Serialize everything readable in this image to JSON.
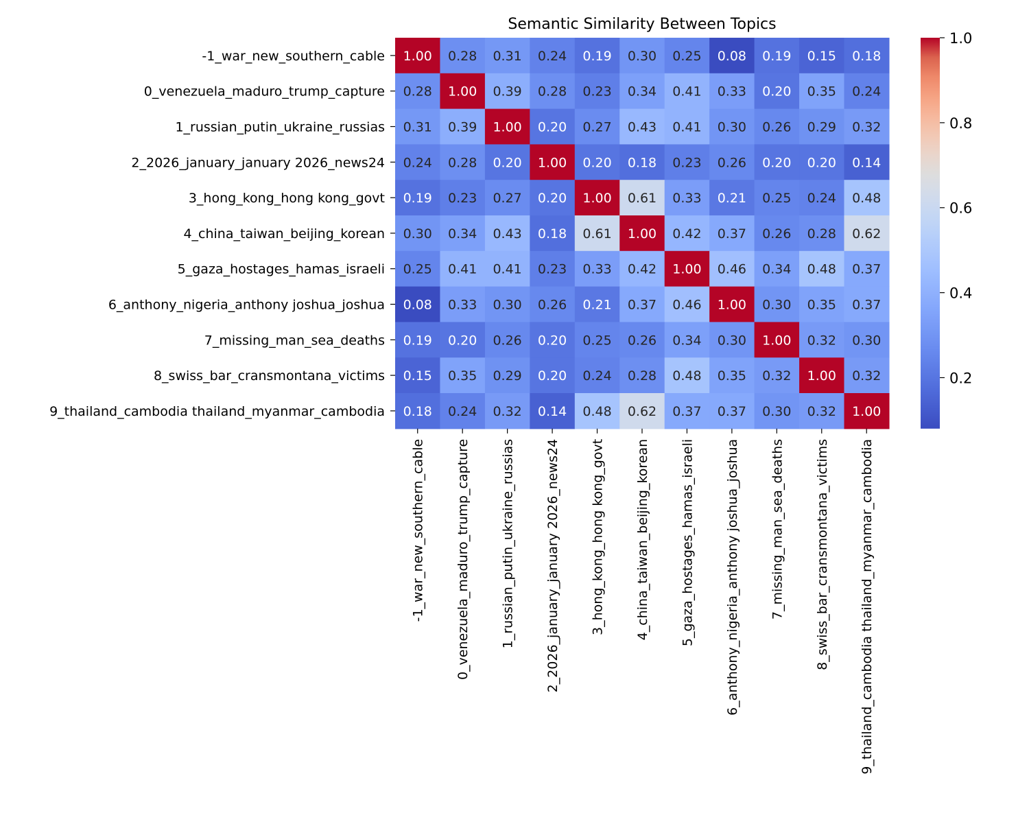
{
  "chart_data": {
    "type": "heatmap",
    "title": "Semantic Similarity Between Topics",
    "xlabel": "",
    "ylabel": "",
    "colormap": "coolwarm",
    "value_range": [
      0.08,
      1.0
    ],
    "value_format": "2 decimals",
    "labels": [
      "-1_war_new_southern_cable",
      "0_venezuela_maduro_trump_capture",
      "1_russian_putin_ukraine_russias",
      "2_2026_january_january 2026_news24",
      "3_hong_kong_hong kong_govt",
      "4_china_taiwan_beijing_korean",
      "5_gaza_hostages_hamas_israeli",
      "6_anthony_nigeria_anthony joshua_joshua",
      "7_missing_man_sea_deaths",
      "8_swiss_bar_cransmontana_victims",
      "9_thailand_cambodia thailand_myanmar_cambodia"
    ],
    "values": [
      [
        1.0,
        0.28,
        0.31,
        0.24,
        0.19,
        0.3,
        0.25,
        0.08,
        0.19,
        0.15,
        0.18
      ],
      [
        0.28,
        1.0,
        0.39,
        0.28,
        0.23,
        0.34,
        0.41,
        0.33,
        0.2,
        0.35,
        0.24
      ],
      [
        0.31,
        0.39,
        1.0,
        0.2,
        0.27,
        0.43,
        0.41,
        0.3,
        0.26,
        0.29,
        0.32
      ],
      [
        0.24,
        0.28,
        0.2,
        1.0,
        0.2,
        0.18,
        0.23,
        0.26,
        0.2,
        0.2,
        0.14
      ],
      [
        0.19,
        0.23,
        0.27,
        0.2,
        1.0,
        0.61,
        0.33,
        0.21,
        0.25,
        0.24,
        0.48
      ],
      [
        0.3,
        0.34,
        0.43,
        0.18,
        0.61,
        1.0,
        0.42,
        0.37,
        0.26,
        0.28,
        0.62
      ],
      [
        0.25,
        0.41,
        0.41,
        0.23,
        0.33,
        0.42,
        1.0,
        0.46,
        0.34,
        0.48,
        0.37
      ],
      [
        0.08,
        0.33,
        0.3,
        0.26,
        0.21,
        0.37,
        0.46,
        1.0,
        0.3,
        0.35,
        0.37
      ],
      [
        0.19,
        0.2,
        0.26,
        0.2,
        0.25,
        0.26,
        0.34,
        0.3,
        1.0,
        0.32,
        0.3
      ],
      [
        0.15,
        0.35,
        0.29,
        0.2,
        0.24,
        0.28,
        0.48,
        0.35,
        0.32,
        1.0,
        0.32
      ],
      [
        0.18,
        0.24,
        0.32,
        0.14,
        0.48,
        0.62,
        0.37,
        0.37,
        0.3,
        0.32,
        1.0
      ]
    ],
    "colorbar": {
      "ticks": [
        0.2,
        0.4,
        0.6,
        0.8,
        1.0
      ],
      "tick_labels": [
        "0.2",
        "0.4",
        "0.6",
        "0.8",
        "1.0"
      ]
    }
  }
}
